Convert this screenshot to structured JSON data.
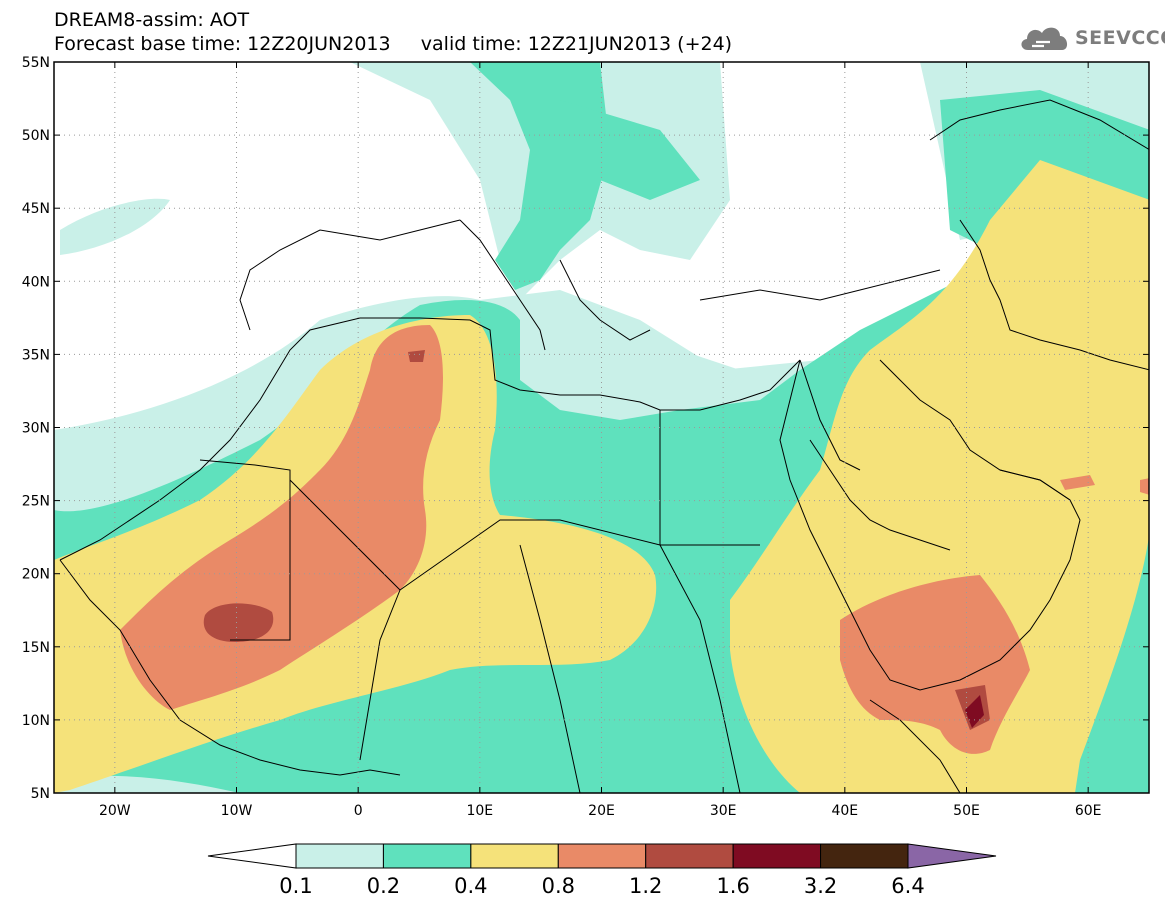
{
  "header": {
    "title_line1": "DREAM8-assim: AOT",
    "title_line2": "Forecast base time: 12Z20JUN2013     valid time: 12Z21JUN2013 (+24)"
  },
  "logo": {
    "text": "SEEVCCC",
    "icon": "cloud-icon"
  },
  "map": {
    "projection": "cylindrical",
    "lon_range": [
      -25,
      65
    ],
    "lat_range": [
      5,
      55
    ],
    "lat_labels": [
      "55N",
      "50N",
      "45N",
      "40N",
      "35N",
      "30N",
      "25N",
      "20N",
      "15N",
      "10N",
      "5N"
    ],
    "lon_labels": [
      "20W",
      "10W",
      "0",
      "10E",
      "20E",
      "30E",
      "40E",
      "50E",
      "60E"
    ],
    "grid": "dotted",
    "colors": {
      "background": "#ffffff",
      "coast": "#000000",
      "grid": "#9a9a9a"
    }
  },
  "colorbar": {
    "labels": [
      "0.1",
      "0.2",
      "0.4",
      "0.8",
      "1.2",
      "1.6",
      "3.2",
      "6.4"
    ],
    "colors": [
      "#ffffff",
      "#c9f0e8",
      "#5fe1bd",
      "#f5e27a",
      "#e98a67",
      "#b04b40",
      "#7f0b22",
      "#44250f",
      "#8a66a6"
    ]
  }
}
